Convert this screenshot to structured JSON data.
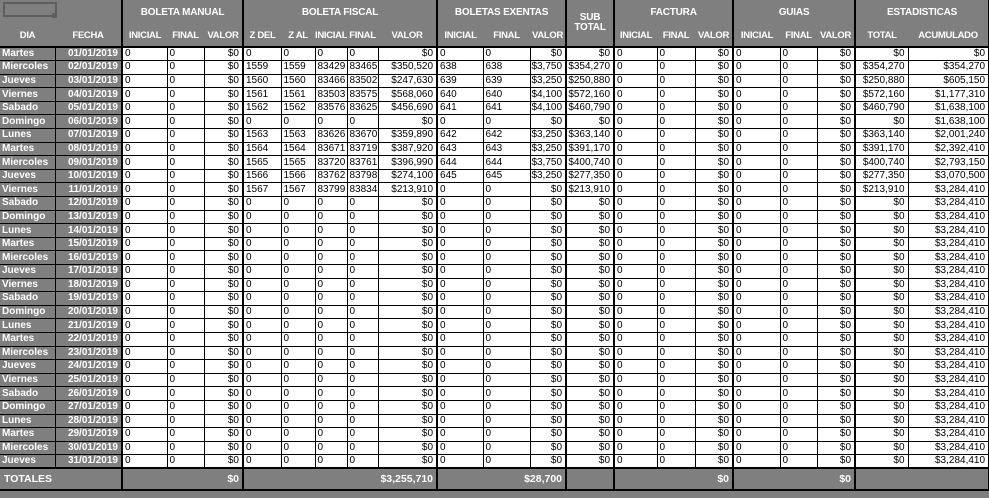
{
  "colors": {
    "background": "#7f7f7f",
    "cell_background": "#ffffff",
    "grid_line": "#000000",
    "header_text": "#ffffff",
    "cell_text": "#000000",
    "shape_outline": "#5e5e5e"
  },
  "shapes": {
    "corner_shape": "rectangle-outline-with-handle"
  },
  "header": {
    "row_cols": [
      "DIA",
      "FECHA"
    ],
    "column_groups": [
      {
        "id": "boleta-manual",
        "label": "BOLETA MANUAL",
        "cols": [
          "INICIAL",
          "FINAL",
          "VALOR"
        ]
      },
      {
        "id": "boleta-fiscal",
        "label": "BOLETA FISCAL",
        "cols": [
          "Z DEL",
          "Z AL",
          "INICIAL",
          "FINAL",
          "VALOR"
        ]
      },
      {
        "id": "boletas-exentas",
        "label": "BOLETAS EXENTAS",
        "cols": [
          "INICIAL",
          "FINAL",
          "VALOR"
        ]
      },
      {
        "id": "sub-total",
        "label": "SUB TOTAL",
        "two_line": true,
        "cols": []
      },
      {
        "id": "factura",
        "label": "FACTURA",
        "cols": [
          "INICIAL",
          "FINAL",
          "VALOR"
        ]
      },
      {
        "id": "guias",
        "label": "GUIAS",
        "cols": [
          "INICIAL",
          "FINAL",
          "VALOR"
        ]
      },
      {
        "id": "estadisticas",
        "label": "ESTADISTICAS",
        "cols": [
          "TOTAL",
          "ACUMULADO"
        ]
      }
    ]
  },
  "rows": [
    [
      "Martes",
      "01/01/2019",
      "0",
      "0",
      "$0",
      "0",
      "0",
      "0",
      "0",
      "$0",
      "0",
      "0",
      "$0",
      "$0",
      "0",
      "0",
      "$0",
      "0",
      "0",
      "$0",
      "$0",
      "$0"
    ],
    [
      "Miercoles",
      "02/01/2019",
      "0",
      "0",
      "$0",
      "1559",
      "1559",
      "83429",
      "83465",
      "$350,520",
      "638",
      "638",
      "$3,750",
      "$354,270",
      "0",
      "0",
      "$0",
      "0",
      "0",
      "$0",
      "$354,270",
      "$354,270"
    ],
    [
      "Jueves",
      "03/01/2019",
      "0",
      "0",
      "$0",
      "1560",
      "1560",
      "83466",
      "83502",
      "$247,630",
      "639",
      "639",
      "$3,250",
      "$250,880",
      "0",
      "0",
      "$0",
      "0",
      "0",
      "$0",
      "$250,880",
      "$605,150"
    ],
    [
      "Viernes",
      "04/01/2019",
      "0",
      "0",
      "$0",
      "1561",
      "1561",
      "83503",
      "83575",
      "$568,060",
      "640",
      "640",
      "$4,100",
      "$572,160",
      "0",
      "0",
      "$0",
      "0",
      "0",
      "$0",
      "$572,160",
      "$1,177,310"
    ],
    [
      "Sabado",
      "05/01/2019",
      "0",
      "0",
      "$0",
      "1562",
      "1562",
      "83576",
      "83625",
      "$456,690",
      "641",
      "641",
      "$4,100",
      "$460,790",
      "0",
      "0",
      "$0",
      "0",
      "0",
      "$0",
      "$460,790",
      "$1,638,100"
    ],
    [
      "Domingo",
      "06/01/2019",
      "0",
      "0",
      "$0",
      "0",
      "0",
      "0",
      "0",
      "$0",
      "0",
      "0",
      "$0",
      "$0",
      "0",
      "0",
      "$0",
      "0",
      "0",
      "$0",
      "$0",
      "$1,638,100"
    ],
    [
      "Lunes",
      "07/01/2019",
      "0",
      "0",
      "$0",
      "1563",
      "1563",
      "83626",
      "83670",
      "$359,890",
      "642",
      "642",
      "$3,250",
      "$363,140",
      "0",
      "0",
      "$0",
      "0",
      "0",
      "$0",
      "$363,140",
      "$2,001,240"
    ],
    [
      "Martes",
      "08/01/2019",
      "0",
      "0",
      "$0",
      "1564",
      "1564",
      "83671",
      "83719",
      "$387,920",
      "643",
      "643",
      "$3,250",
      "$391,170",
      "0",
      "0",
      "$0",
      "0",
      "0",
      "$0",
      "$391,170",
      "$2,392,410"
    ],
    [
      "Miercoles",
      "09/01/2019",
      "0",
      "0",
      "$0",
      "1565",
      "1565",
      "83720",
      "83761",
      "$396,990",
      "644",
      "644",
      "$3,750",
      "$400,740",
      "0",
      "0",
      "$0",
      "0",
      "0",
      "$0",
      "$400,740",
      "$2,793,150"
    ],
    [
      "Jueves",
      "10/01/2019",
      "0",
      "0",
      "$0",
      "1566",
      "1566",
      "83762",
      "83798",
      "$274,100",
      "645",
      "645",
      "$3,250",
      "$277,350",
      "0",
      "0",
      "$0",
      "0",
      "0",
      "$0",
      "$277,350",
      "$3,070,500"
    ],
    [
      "Viernes",
      "11/01/2019",
      "0",
      "0",
      "$0",
      "1567",
      "1567",
      "83799",
      "83834",
      "$213,910",
      "0",
      "0",
      "$0",
      "$213,910",
      "0",
      "0",
      "$0",
      "0",
      "0",
      "$0",
      "$213,910",
      "$3,284,410"
    ],
    [
      "Sabado",
      "12/01/2019",
      "0",
      "0",
      "$0",
      "0",
      "0",
      "0",
      "0",
      "$0",
      "0",
      "0",
      "$0",
      "$0",
      "0",
      "0",
      "$0",
      "0",
      "0",
      "$0",
      "$0",
      "$3,284,410"
    ],
    [
      "Domingo",
      "13/01/2019",
      "0",
      "0",
      "$0",
      "0",
      "0",
      "0",
      "0",
      "$0",
      "0",
      "0",
      "$0",
      "$0",
      "0",
      "0",
      "$0",
      "0",
      "0",
      "$0",
      "$0",
      "$3,284,410"
    ],
    [
      "Lunes",
      "14/01/2019",
      "0",
      "0",
      "$0",
      "0",
      "0",
      "0",
      "0",
      "$0",
      "0",
      "0",
      "$0",
      "$0",
      "0",
      "0",
      "$0",
      "0",
      "0",
      "$0",
      "$0",
      "$3,284,410"
    ],
    [
      "Martes",
      "15/01/2019",
      "0",
      "0",
      "$0",
      "0",
      "0",
      "0",
      "0",
      "$0",
      "0",
      "0",
      "$0",
      "$0",
      "0",
      "0",
      "$0",
      "0",
      "0",
      "$0",
      "$0",
      "$3,284,410"
    ],
    [
      "Miercoles",
      "16/01/2019",
      "0",
      "0",
      "$0",
      "0",
      "0",
      "0",
      "0",
      "$0",
      "0",
      "0",
      "$0",
      "$0",
      "0",
      "0",
      "$0",
      "0",
      "0",
      "$0",
      "$0",
      "$3,284,410"
    ],
    [
      "Jueves",
      "17/01/2019",
      "0",
      "0",
      "$0",
      "0",
      "0",
      "0",
      "0",
      "$0",
      "0",
      "0",
      "$0",
      "$0",
      "0",
      "0",
      "$0",
      "0",
      "0",
      "$0",
      "$0",
      "$3,284,410"
    ],
    [
      "Viernes",
      "18/01/2019",
      "0",
      "0",
      "$0",
      "0",
      "0",
      "0",
      "0",
      "$0",
      "0",
      "0",
      "$0",
      "$0",
      "0",
      "0",
      "$0",
      "0",
      "0",
      "$0",
      "$0",
      "$3,284,410"
    ],
    [
      "Sabado",
      "19/01/2019",
      "0",
      "0",
      "$0",
      "0",
      "0",
      "0",
      "0",
      "$0",
      "0",
      "0",
      "$0",
      "$0",
      "0",
      "0",
      "$0",
      "0",
      "0",
      "$0",
      "$0",
      "$3,284,410"
    ],
    [
      "Domingo",
      "20/01/2019",
      "0",
      "0",
      "$0",
      "0",
      "0",
      "0",
      "0",
      "$0",
      "0",
      "0",
      "$0",
      "$0",
      "0",
      "0",
      "$0",
      "0",
      "0",
      "$0",
      "$0",
      "$3,284,410"
    ],
    [
      "Lunes",
      "21/01/2019",
      "0",
      "0",
      "$0",
      "0",
      "0",
      "0",
      "0",
      "$0",
      "0",
      "0",
      "$0",
      "$0",
      "0",
      "0",
      "$0",
      "0",
      "0",
      "$0",
      "$0",
      "$3,284,410"
    ],
    [
      "Martes",
      "22/01/2019",
      "0",
      "0",
      "$0",
      "0",
      "0",
      "0",
      "0",
      "$0",
      "0",
      "0",
      "$0",
      "$0",
      "0",
      "0",
      "$0",
      "0",
      "0",
      "$0",
      "$0",
      "$3,284,410"
    ],
    [
      "Miercoles",
      "23/01/2019",
      "0",
      "0",
      "$0",
      "0",
      "0",
      "0",
      "0",
      "$0",
      "0",
      "0",
      "$0",
      "$0",
      "0",
      "0",
      "$0",
      "0",
      "0",
      "$0",
      "$0",
      "$3,284,410"
    ],
    [
      "Jueves",
      "24/01/2019",
      "0",
      "0",
      "$0",
      "0",
      "0",
      "0",
      "0",
      "$0",
      "0",
      "0",
      "$0",
      "$0",
      "0",
      "0",
      "$0",
      "0",
      "0",
      "$0",
      "$0",
      "$3,284,410"
    ],
    [
      "Viernes",
      "25/01/2019",
      "0",
      "0",
      "$0",
      "0",
      "0",
      "0",
      "0",
      "$0",
      "0",
      "0",
      "$0",
      "$0",
      "0",
      "0",
      "$0",
      "0",
      "0",
      "$0",
      "$0",
      "$3,284,410"
    ],
    [
      "Sabado",
      "26/01/2019",
      "0",
      "0",
      "$0",
      "0",
      "0",
      "0",
      "0",
      "$0",
      "0",
      "0",
      "$0",
      "$0",
      "0",
      "0",
      "$0",
      "0",
      "0",
      "$0",
      "$0",
      "$3,284,410"
    ],
    [
      "Domingo",
      "27/01/2019",
      "0",
      "0",
      "$0",
      "0",
      "0",
      "0",
      "0",
      "$0",
      "0",
      "0",
      "$0",
      "$0",
      "0",
      "0",
      "$0",
      "0",
      "0",
      "$0",
      "$0",
      "$3,284,410"
    ],
    [
      "Lunes",
      "28/01/2019",
      "0",
      "0",
      "$0",
      "0",
      "0",
      "0",
      "0",
      "$0",
      "0",
      "0",
      "$0",
      "$0",
      "0",
      "0",
      "$0",
      "0",
      "0",
      "$0",
      "$0",
      "$3,284,410"
    ],
    [
      "Martes",
      "29/01/2019",
      "0",
      "0",
      "$0",
      "0",
      "0",
      "0",
      "0",
      "$0",
      "0",
      "0",
      "$0",
      "$0",
      "0",
      "0",
      "$0",
      "0",
      "0",
      "$0",
      "$0",
      "$3,284,410"
    ],
    [
      "Miercoles",
      "30/01/2019",
      "0",
      "0",
      "$0",
      "0",
      "0",
      "0",
      "0",
      "$0",
      "0",
      "0",
      "$0",
      "$0",
      "0",
      "0",
      "$0",
      "0",
      "0",
      "$0",
      "$0",
      "$3,284,410"
    ],
    [
      "Jueves",
      "31/01/2019",
      "0",
      "0",
      "$0",
      "0",
      "0",
      "0",
      "0",
      "$0",
      "0",
      "0",
      "$0",
      "$0",
      "0",
      "0",
      "$0",
      "0",
      "0",
      "$0",
      "$0",
      "$3,284,410"
    ]
  ],
  "totals": {
    "label": "TOTALES",
    "boleta_manual": "$0",
    "boleta_fiscal": "$3,255,710",
    "boletas_exentas": "$28,700",
    "sub_total": "",
    "factura": "$0",
    "guias": "$0",
    "estadisticas": ""
  }
}
